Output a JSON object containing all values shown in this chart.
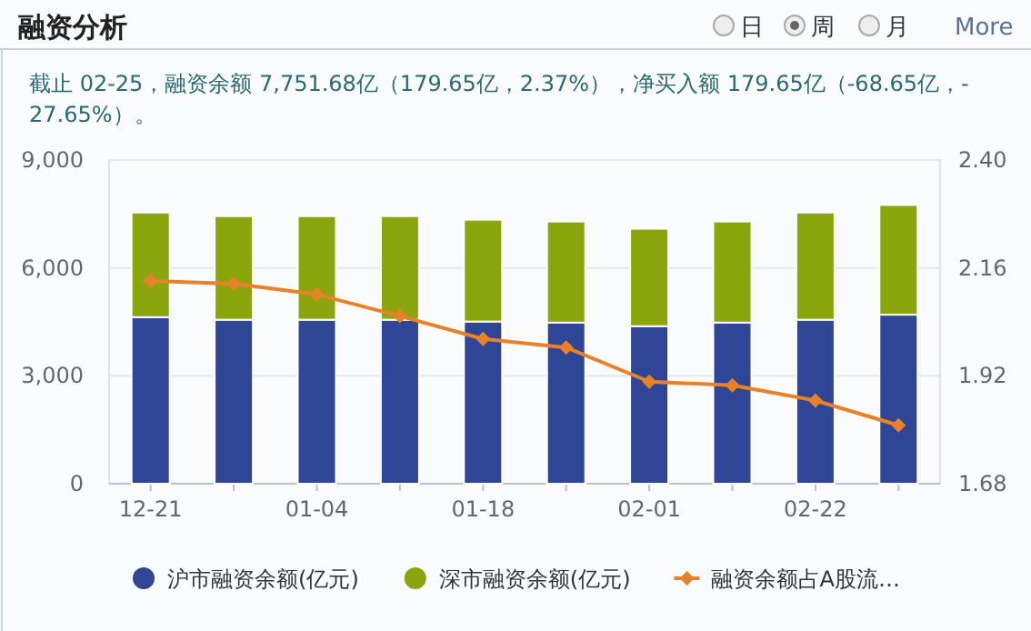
{
  "chart_data": {
    "type": "bar",
    "title": "融资分析",
    "subtitle": "截止 02-25，融资余额 7,751.68亿（179.65亿，2.37%），净买入额 179.65亿（-68.65亿，-27.65%）。",
    "annotations": [
      "日",
      "周",
      "月",
      "More"
    ],
    "categories": [
      "12-21",
      null,
      "01-04",
      null,
      "01-18",
      null,
      "02-01",
      null,
      "02-22",
      null
    ],
    "stacked": true,
    "grid": "y",
    "legend": "bottom",
    "marker": "diamond",
    "ylim": [
      0,
      9000
    ],
    "yticks": [
      0,
      {
        "value": 3000,
        "label": "3,000"
      },
      {
        "value": 6000,
        "label": "6,000"
      },
      {
        "value": 9000,
        "label": "9,000"
      }
    ],
    "y2lim": [
      1.68,
      2.4
    ],
    "y2ticks": [
      1.68,
      1.92,
      2.16,
      {
        "value": 2.4,
        "label": "2.40"
      }
    ],
    "series": [
      {
        "name": "沪市融资余额(亿元)",
        "color": "#2f4596",
        "values": [
          4630,
          4560,
          4560,
          4560,
          4510,
          4480,
          4380,
          4480,
          4560,
          4700
        ]
      },
      {
        "name": "深市融资余额(亿元)",
        "color": "#8aa60c",
        "values": [
          2910,
          2880,
          2880,
          2880,
          2830,
          2810,
          2710,
          2810,
          2980,
          3050
        ]
      },
      {
        "name": "融资余额占A股流…",
        "type": "line",
        "axis": "y2",
        "color": "#e8822a",
        "values": [
          2.131,
          2.125,
          2.101,
          2.053,
          2.002,
          1.983,
          1.907,
          1.899,
          1.865,
          1.81
        ]
      }
    ]
  }
}
